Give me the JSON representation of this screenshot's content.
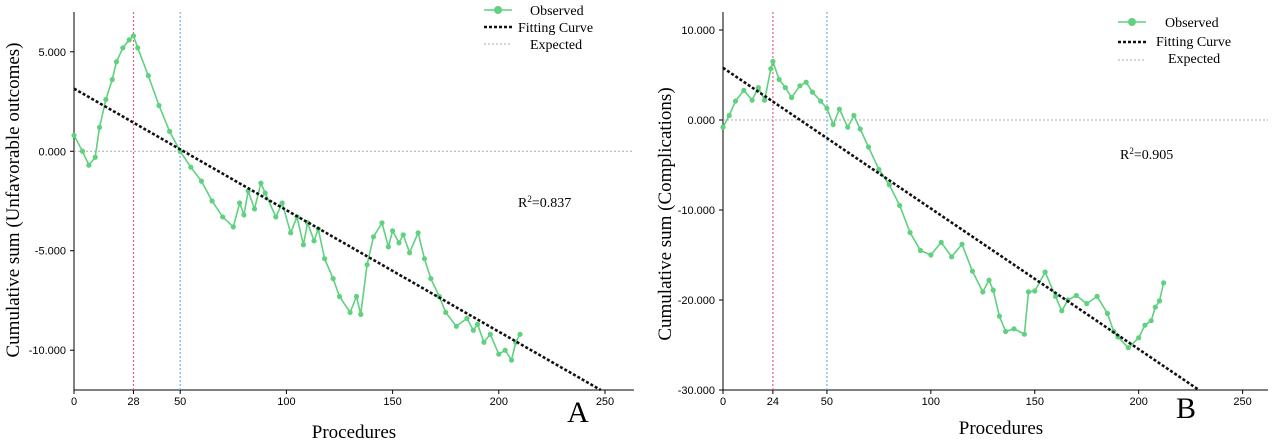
{
  "colors": {
    "observed": "#5fd17f",
    "fit": "#111111",
    "expected": "#aaaaaa",
    "red_line": "#ef5a7a",
    "blue_line": "#6aaee6"
  },
  "chart_data": [
    {
      "type": "line",
      "panel": "A",
      "legend": [
        "Observed",
        "Fitting Curve",
        "Expected"
      ],
      "legend_position": "top-right",
      "xlabel": "Procedures",
      "ylabel": "Cumulative sum (Unfavorable outcomes)",
      "xlim": [
        0,
        250
      ],
      "ylim": [
        -12.0,
        7.0
      ],
      "x_ticks": [
        "0",
        "28",
        "50",
        "100",
        "150",
        "200",
        "250"
      ],
      "x_tick_values": [
        0,
        28,
        50,
        100,
        150,
        200,
        250
      ],
      "y_ticks": [
        "5.000",
        "0.000",
        "-5.000",
        "-10.000"
      ],
      "y_tick_values": [
        5,
        0,
        -5,
        -10
      ],
      "r2": "0.837",
      "vertical_lines": {
        "red": 28,
        "blue": 50
      },
      "expected": 0,
      "fit": {
        "x": [
          0,
          248
        ],
        "y": [
          3.15,
          -12.0
        ]
      },
      "series": [
        {
          "name": "Observed",
          "x": [
            0,
            4,
            7,
            10,
            12,
            15,
            18,
            20,
            23,
            26,
            28,
            30,
            35,
            40,
            45,
            50,
            55,
            60,
            65,
            70,
            75,
            78,
            80,
            82,
            85,
            88,
            90,
            95,
            98,
            102,
            105,
            108,
            110,
            113,
            115,
            118,
            122,
            125,
            130,
            133,
            135,
            138,
            141,
            145,
            148,
            150,
            153,
            155,
            158,
            162,
            165,
            168,
            172,
            175,
            180,
            185,
            188,
            190,
            193,
            196,
            200,
            203,
            206,
            208,
            210
          ],
          "y": [
            0.8,
            0.0,
            -0.7,
            -0.3,
            1.2,
            2.6,
            3.6,
            4.5,
            5.2,
            5.6,
            5.8,
            5.2,
            3.8,
            2.3,
            1.0,
            0.0,
            -0.8,
            -1.5,
            -2.5,
            -3.3,
            -3.8,
            -2.6,
            -3.2,
            -2.0,
            -2.9,
            -1.6,
            -2.1,
            -3.3,
            -2.6,
            -4.1,
            -3.3,
            -4.7,
            -3.6,
            -4.5,
            -3.9,
            -5.4,
            -6.4,
            -7.3,
            -8.1,
            -7.3,
            -8.2,
            -5.7,
            -4.3,
            -3.6,
            -4.8,
            -4.0,
            -4.6,
            -4.2,
            -5.1,
            -4.1,
            -5.4,
            -6.4,
            -7.3,
            -8.1,
            -8.8,
            -8.4,
            -9.0,
            -8.7,
            -9.6,
            -9.2,
            -10.2,
            -10.0,
            -10.5,
            -9.6,
            -9.2
          ]
        }
      ]
    },
    {
      "type": "line",
      "panel": "B",
      "legend": [
        "Observed",
        "Fitting Curve",
        "Expected"
      ],
      "legend_position": "top-right",
      "xlabel": "Procedures",
      "ylabel": "Cumulative sum (Complications)",
      "xlim": [
        0,
        255
      ],
      "ylim": [
        -30.0,
        12.0
      ],
      "x_ticks": [
        "0",
        "24",
        "50",
        "100",
        "150",
        "200",
        "250"
      ],
      "x_tick_values": [
        0,
        24,
        50,
        100,
        150,
        200,
        250
      ],
      "y_ticks": [
        "10.000",
        "0.000",
        "-10.000",
        "-20.000",
        "-30.000"
      ],
      "y_tick_values": [
        10,
        0,
        -10,
        -20,
        -30
      ],
      "r2": "0.905",
      "vertical_lines": {
        "red": 24,
        "blue": 50
      },
      "expected": 0,
      "fit": {
        "x": [
          0,
          229
        ],
        "y": [
          5.8,
          -30.0
        ]
      },
      "series": [
        {
          "name": "Observed",
          "x": [
            0,
            3,
            6,
            10,
            14,
            17,
            20,
            23,
            24,
            27,
            30,
            33,
            37,
            40,
            43,
            47,
            50,
            53,
            56,
            60,
            63,
            66,
            70,
            75,
            80,
            85,
            90,
            95,
            100,
            105,
            110,
            115,
            120,
            125,
            128,
            130,
            133,
            136,
            140,
            145,
            147,
            150,
            155,
            160,
            163,
            166,
            170,
            175,
            180,
            185,
            188,
            190,
            195,
            200,
            203,
            206,
            208,
            210,
            212
          ],
          "y": [
            -0.8,
            0.5,
            2.1,
            3.3,
            2.2,
            3.6,
            2.2,
            5.7,
            6.5,
            4.5,
            3.6,
            2.5,
            3.8,
            4.2,
            3.1,
            2.1,
            1.3,
            -0.5,
            1.2,
            -0.8,
            0.5,
            -1.0,
            -3.0,
            -5.5,
            -7.2,
            -9.5,
            -12.5,
            -14.5,
            -15.0,
            -13.6,
            -15.2,
            -13.8,
            -16.8,
            -19.1,
            -17.8,
            -18.9,
            -21.8,
            -23.5,
            -23.2,
            -23.8,
            -19.1,
            -19.0,
            -16.9,
            -19.6,
            -21.2,
            -20.0,
            -19.5,
            -20.4,
            -19.6,
            -21.5,
            -23.5,
            -24.1,
            -25.3,
            -24.2,
            -22.8,
            -22.3,
            -20.8,
            -20.1,
            -18.1
          ]
        }
      ]
    }
  ]
}
